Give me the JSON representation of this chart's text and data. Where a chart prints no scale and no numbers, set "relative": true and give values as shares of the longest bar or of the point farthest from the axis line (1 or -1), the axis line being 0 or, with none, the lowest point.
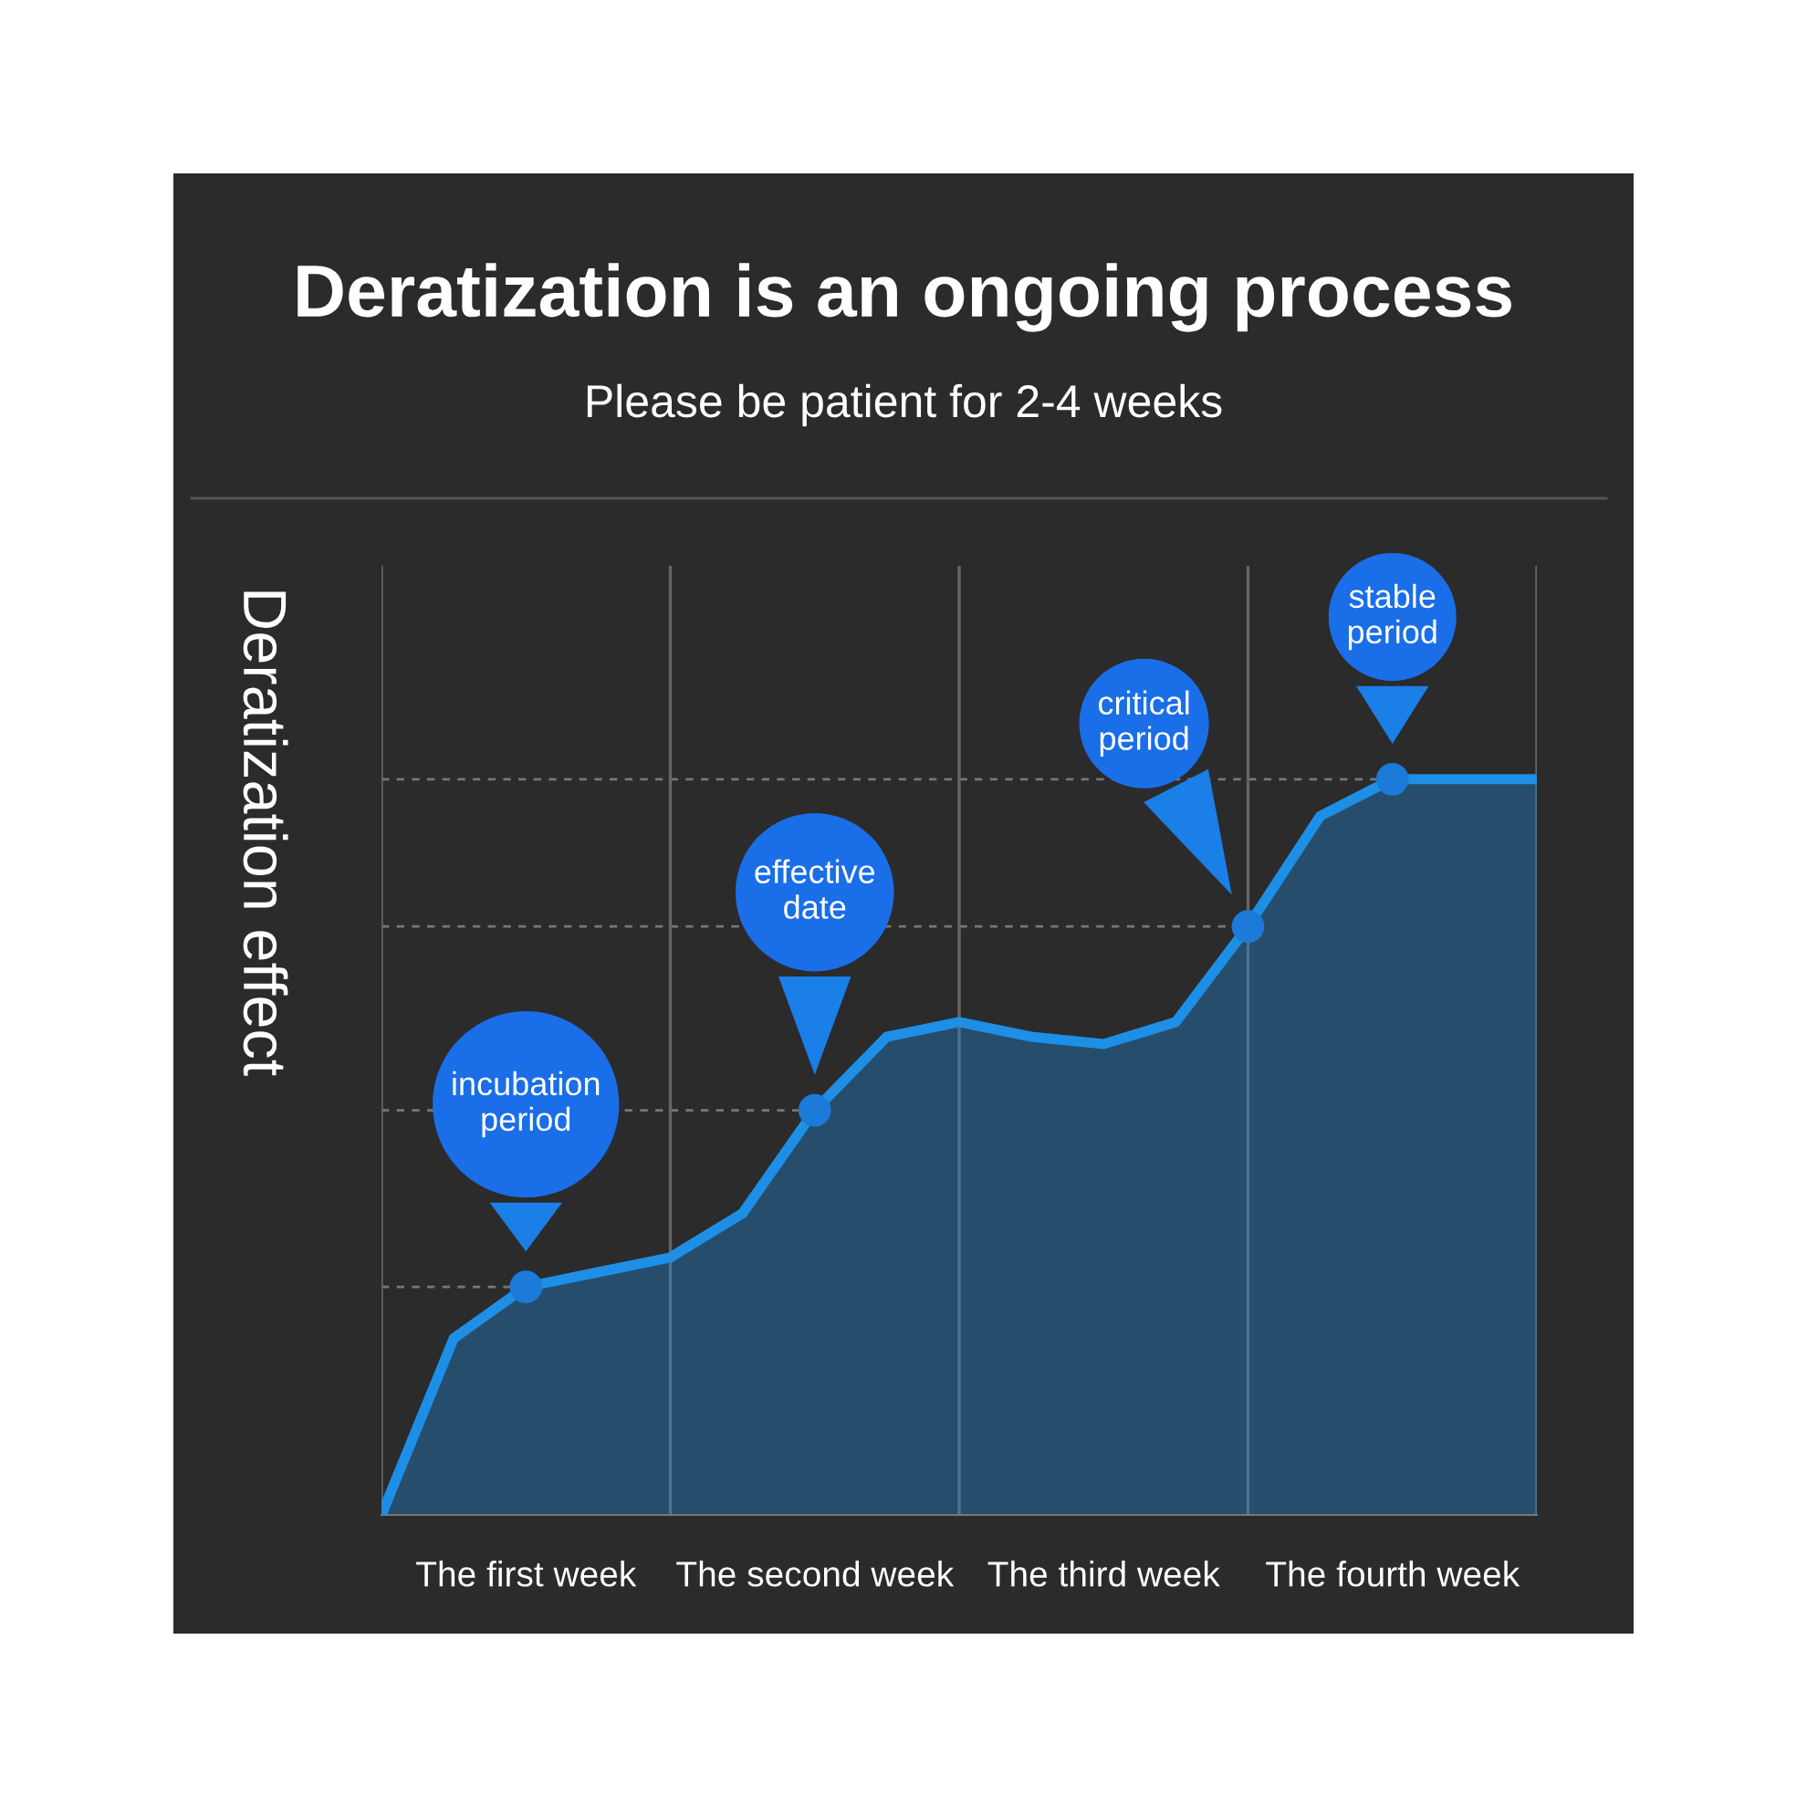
{
  "chart_data": {
    "type": "area",
    "title": "Deratization is an ongoing process",
    "subtitle": "Please be patient for 2-4 weeks",
    "ylabel": "Deratization effect",
    "relative": true,
    "grid": "x",
    "categories": [
      null,
      null,
      "The first week",
      null,
      null,
      null,
      "The second week",
      null,
      null,
      null,
      "The third week",
      null,
      null,
      null,
      "The fourth week",
      null,
      null
    ],
    "series": [
      {
        "color": "#1e8fe6",
        "values": [
          0.0,
          0.24,
          0.31,
          0.33,
          0.35,
          0.41,
          0.55,
          0.65,
          0.67,
          0.65,
          0.64,
          0.67,
          0.8,
          0.95,
          1.0,
          1.0,
          1.0
        ]
      },
      {
        "type": "scatter",
        "color": "#1c7ad8",
        "values": [
          null,
          null,
          0.31,
          null,
          null,
          null,
          0.55,
          null,
          null,
          null,
          null,
          null,
          0.8,
          null,
          1.0,
          null,
          null
        ]
      }
    ],
    "ref_lines": [
      {
        "axis": "y",
        "value": 0.31,
        "color": "#777777",
        "line_style": "dashed"
      },
      {
        "axis": "y",
        "value": 0.55,
        "color": "#777777",
        "line_style": "dashed"
      },
      {
        "axis": "y",
        "value": 0.8,
        "color": "#777777",
        "line_style": "dashed"
      },
      {
        "axis": "y",
        "value": 1.0,
        "color": "#777777",
        "line_style": "dashed"
      }
    ],
    "annotations": [
      "incubation\nperiod",
      "effective\ndate",
      "critical\nperiod",
      "stable\nperiod"
    ]
  }
}
